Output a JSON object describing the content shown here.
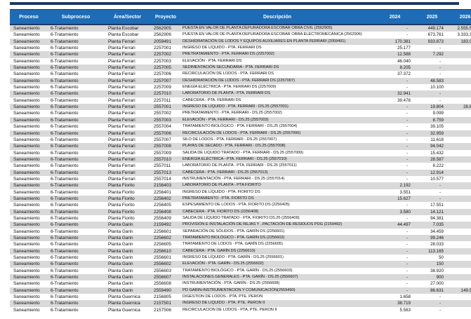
{
  "colors": {
    "top_bar": "#1F3864",
    "header_background": "#1E6CB5",
    "header_text": "#FFFFFF",
    "row_stripe": "#D9D9D9"
  },
  "table": {
    "columns": [
      "Proceso",
      "Subproceso",
      "Área/Sector",
      "Proyecto",
      "Descripción",
      "2024",
      "2025",
      "2026"
    ],
    "rows": [
      [
        "Saneamiento",
        "6-Tratamiento",
        "Planta Escobar",
        "2562905",
        "PUESTA EN VALOR DE PLANTA DEPURADORA ESCOBAR OBRA CIVIL (2562905)",
        "-",
        "449.174",
        "2.555.560"
      ],
      [
        "Saneamiento",
        "6-Tratamiento",
        "Planta Escobar",
        "2562906",
        "PUESTA EN VALOR DE PLANTA DEPURADORA ESCOBAR OBRA ELECTROMECÁNICA (2562906)",
        "-",
        "673.761",
        "3.333.340"
      ],
      [
        "Saneamiento",
        "6-Tratamiento",
        "Planta Ferrari",
        "2059491",
        "DESHIDRATACIÓN DE LODOS Y EQUIPOS AUXILIARES EN PLANTA FERRARI (2059491)",
        "170.381",
        "933.873",
        "183.030"
      ],
      [
        "Saneamiento",
        "6-Tratamiento",
        "Planta Ferrari",
        "2257001",
        "INGRESO DE LÍQUIDO - PTA. FERRARI DS",
        "25.177",
        "-",
        "-"
      ],
      [
        "Saneamiento",
        "6-Tratamiento",
        "Planta Ferrari",
        "2257002",
        "PRETRATAMIENTO - PTA. FERRARI DS (2257002)",
        "12.588",
        "7.292",
        "-"
      ],
      [
        "Saneamiento",
        "6-Tratamiento",
        "Planta Ferrari",
        "2257003",
        "ELEVACIÓN - PTA. FERRARI DS",
        "46.040",
        "-",
        "-"
      ],
      [
        "Saneamiento",
        "6-Tratamiento",
        "Planta Ferrari",
        "2257005",
        "SEDIMENTACIÓN SECUNDARIA - PTA. FERRARI DS",
        "8.205",
        "-",
        "-"
      ],
      [
        "Saneamiento",
        "6-Tratamiento",
        "Planta Ferrari",
        "2257006",
        "RECIRCULACIÓN DE LODOS - PTA. FERRARI DS",
        "37.372",
        "-",
        "-"
      ],
      [
        "Saneamiento",
        "6-Tratamiento",
        "Planta Ferrari",
        "2257007",
        "DESHIDRATACIÓN DE LODOS - PTA. FERRARI DS (2257007)",
        "-",
        "48.583",
        "-"
      ],
      [
        "Saneamiento",
        "6-Tratamiento",
        "Planta Ferrari",
        "2257009",
        "ENEGÍA ELÉCTRICA - PTA. FERRARI DS (2257009)",
        "-",
        "10.100",
        "-"
      ],
      [
        "Saneamiento",
        "6-Tratamiento",
        "Planta Ferrari",
        "2257010",
        "LABORATORIO DE PLANTA - PTA. FERRARI DS",
        "32.941",
        "-",
        "-"
      ],
      [
        "Saneamiento",
        "6-Tratamiento",
        "Planta Ferrari",
        "2257011",
        "CABECERA - PTA. FERRARI DS",
        "39.478",
        "-",
        "-"
      ],
      [
        "Saneamiento",
        "6-Tratamiento",
        "Planta Ferrari",
        "2557001",
        "INGRESO DE LÍQUIDO - PTA. FERRARI - DS.25 (2557001)",
        "-",
        "19.804",
        "28.898"
      ],
      [
        "Saneamiento",
        "6-Tratamiento",
        "Planta Ferrari",
        "2557002",
        "PRETRATAMIENTO - PTA. FERRARI - DS.25 (2557002)",
        "-",
        "9.099",
        "-"
      ],
      [
        "Saneamiento",
        "6-Tratamiento",
        "Planta Ferrari",
        "2557003",
        "ELEVACIÓN  - PTA. FERRARI - DS.25 (2557003)",
        "-",
        "8.759",
        "-"
      ],
      [
        "Saneamiento",
        "6-Tratamiento",
        "Planta Ferrari",
        "2557004",
        "TRATAMIENTO BIOLÓGICO  - PTA. FERRARI - DS.25 (2557004)",
        "-",
        "39.105",
        "-"
      ],
      [
        "Saneamiento",
        "6-Tratamiento",
        "Planta Ferrari",
        "2557006",
        "RECIRCULACIÓN DE LODOS  - PTA. FERRARI - DS.25 (2557006)",
        "-",
        "32.959",
        "-"
      ],
      [
        "Saneamiento",
        "6-Tratamiento",
        "Planta Ferrari",
        "2557007",
        "SILO DE LODOS  - PTA. FERRARI - DS.25 (2557007)",
        "-",
        "11.618",
        "-"
      ],
      [
        "Saneamiento",
        "6-Tratamiento",
        "Planta Ferrari",
        "2557008",
        "PLAYAS DE SECADO  - PTA. FERRARI - DS.25 (2557008)",
        "-",
        "94.042",
        "-"
      ],
      [
        "Saneamiento",
        "6-Tratamiento",
        "Planta Ferrari",
        "2557009",
        "SALIDA DE LIQUIDO TRATADO  - PTA. FERRARI - DS.25 (2557009)",
        "-",
        "15.432",
        "-"
      ],
      [
        "Saneamiento",
        "6-Tratamiento",
        "Planta Ferrari",
        "2557010",
        "ENERGÍA ELÉCTRICA  - PTA. FERRARI - DS.25 (2557010)",
        "-",
        "28.587",
        "-"
      ],
      [
        "Saneamiento",
        "6-Tratamiento",
        "Planta Ferrari",
        "2557011",
        "LABORATORIO DE PLANTA  - PTA. FERRARI - DS.25 (2557011)",
        "-",
        "8.222",
        "-"
      ],
      [
        "Saneamiento",
        "6-Tratamiento",
        "Planta Ferrari",
        "2557013",
        "CABECERA  - PTA. FERRARI - DS.25 (2557013)",
        "-",
        "12.914",
        "-"
      ],
      [
        "Saneamiento",
        "6-Tratamiento",
        "Planta Ferrari",
        "2557014",
        "INSTRUMENTACIÓN  - PTA. FERRARI - DS.25 (2557014)",
        "-",
        "10.577",
        "-"
      ],
      [
        "Saneamiento",
        "6-Tratamiento",
        "Planta Fiorito",
        "2156403",
        "LABORATORIO DE PLANTA - PTA FIORITO",
        "2.192",
        "-",
        "-"
      ],
      [
        "Saneamiento",
        "6-Tratamiento",
        "Planta Fiorito",
        "2256401",
        "INGRESO DE LÍQUIDO - PTA. FIORITO DS",
        "3.551",
        "-",
        "-"
      ],
      [
        "Saneamiento",
        "6-Tratamiento",
        "Planta Fiorito",
        "2256402",
        "PRETRATAMIENTO - PTA. FIORITO DS",
        "15.627",
        "-",
        "-"
      ],
      [
        "Saneamiento",
        "6-Tratamiento",
        "Planta Fiorito",
        "2256405",
        "ESPESAMIENTO DE LODOS - PTA. FIORITO DS (2256405)",
        "-",
        "17.551",
        "-"
      ],
      [
        "Saneamiento",
        "6-Tratamiento",
        "Planta Fiorito",
        "2256408",
        "CABECERA - PTA. FIORITO DS (2256408)",
        "3.580",
        "14.121",
        "-"
      ],
      [
        "Saneamiento",
        "6-Tratamiento",
        "Planta Fiorito",
        "2556409",
        "SALIDA DE LÍQUIDO TRATADO - PTA. FIORITO DS.25 (2556409)",
        "-",
        "94.381",
        "-"
      ],
      [
        "Saneamiento",
        "6-Tratamiento",
        "Planta Garin",
        "2159492",
        "PROVISIÓN E INSTALACIÓN DE REJAS Y ..PACTACIÓN DE RESIDUOS PDG (2159492)",
        "44.497",
        "7.035",
        "-"
      ],
      [
        "Saneamiento",
        "6-Tratamiento",
        "Planta Garin",
        "2256601",
        "SEPARACIÓN DE SÓLIDOS - PTA. GARÍN DS (2256601)",
        "-",
        "34.459",
        "-"
      ],
      [
        "Saneamiento",
        "6-Tratamiento",
        "Planta Garin",
        "2256602",
        "TRATAMIENTO BIOLÓGICO - PTA. GARÍN DS (2256602)",
        "-",
        "99.246",
        "-"
      ],
      [
        "Saneamiento",
        "6-Tratamiento",
        "Planta Garin",
        "2256605",
        "TRATAMIENTO DE LODOS - PTA. GARÍN DS (2256605)",
        "-",
        "28.033",
        "-"
      ],
      [
        "Saneamiento",
        "6-Tratamiento",
        "Planta Garin",
        "2256610",
        "CABECERA - PTA. GARÍN DS (2256610)",
        "-",
        "113.165",
        "-"
      ],
      [
        "Saneamiento",
        "6-Tratamiento",
        "Planta Garin",
        "2556601",
        "INGRESO DE LÍQUIDO - PTA. GARÍN - DS.25 (2556601)",
        "-",
        "50",
        "-"
      ],
      [
        "Saneamiento",
        "6-Tratamiento",
        "Planta Garin",
        "2556602",
        "ELEVACIÓN - PTA. GARÍN - DS.25 (2556602)",
        "-",
        "150",
        "-"
      ],
      [
        "Saneamiento",
        "6-Tratamiento",
        "Planta Garin",
        "2556603",
        "TRATAMIENTO BIOLÓGICO - PTA. GARÍN - DS.25 (2556603)",
        "-",
        "38.920",
        "-"
      ],
      [
        "Saneamiento",
        "6-Tratamiento",
        "Planta Garin",
        "2556607",
        "INSTALACIONES GENERALES  - PTA. GARÍN - DS.25 (2556607)",
        "-",
        "900",
        "-"
      ],
      [
        "Saneamiento",
        "6-Tratamiento",
        "Planta Garin",
        "2556608",
        "INSTRUMENTACIÓN - PTA. GARÍN - DS.25 (2556608)",
        "-",
        "27.000",
        "-"
      ],
      [
        "Saneamiento",
        "6-Tratamiento",
        "Planta Garin",
        "2559490",
        "PD GARIN-INSTRUMENTACION Y COMUNICACIÓN(2559490)",
        "-",
        "86.631",
        "149.940"
      ],
      [
        "Saneamiento",
        "6-Tratamiento",
        "Planta Guernica",
        "2156805",
        "DIGESTION DE LODOS - PTA. PTE. PERON",
        "1.658",
        "-",
        "-"
      ],
      [
        "Saneamiento",
        "6-Tratamiento",
        "Planta Guernica",
        "2157501",
        "INGRESO DE LIQUIDO - PTA. PTE. PERON II",
        "38.719",
        "-",
        "-"
      ],
      [
        "Saneamiento",
        "6-Tratamiento",
        "Planta Guernica",
        "2157506",
        "RECIRCULACION DE LODOS - PTA. PTE. PERON II",
        "5.563",
        "-",
        "-"
      ]
    ]
  }
}
